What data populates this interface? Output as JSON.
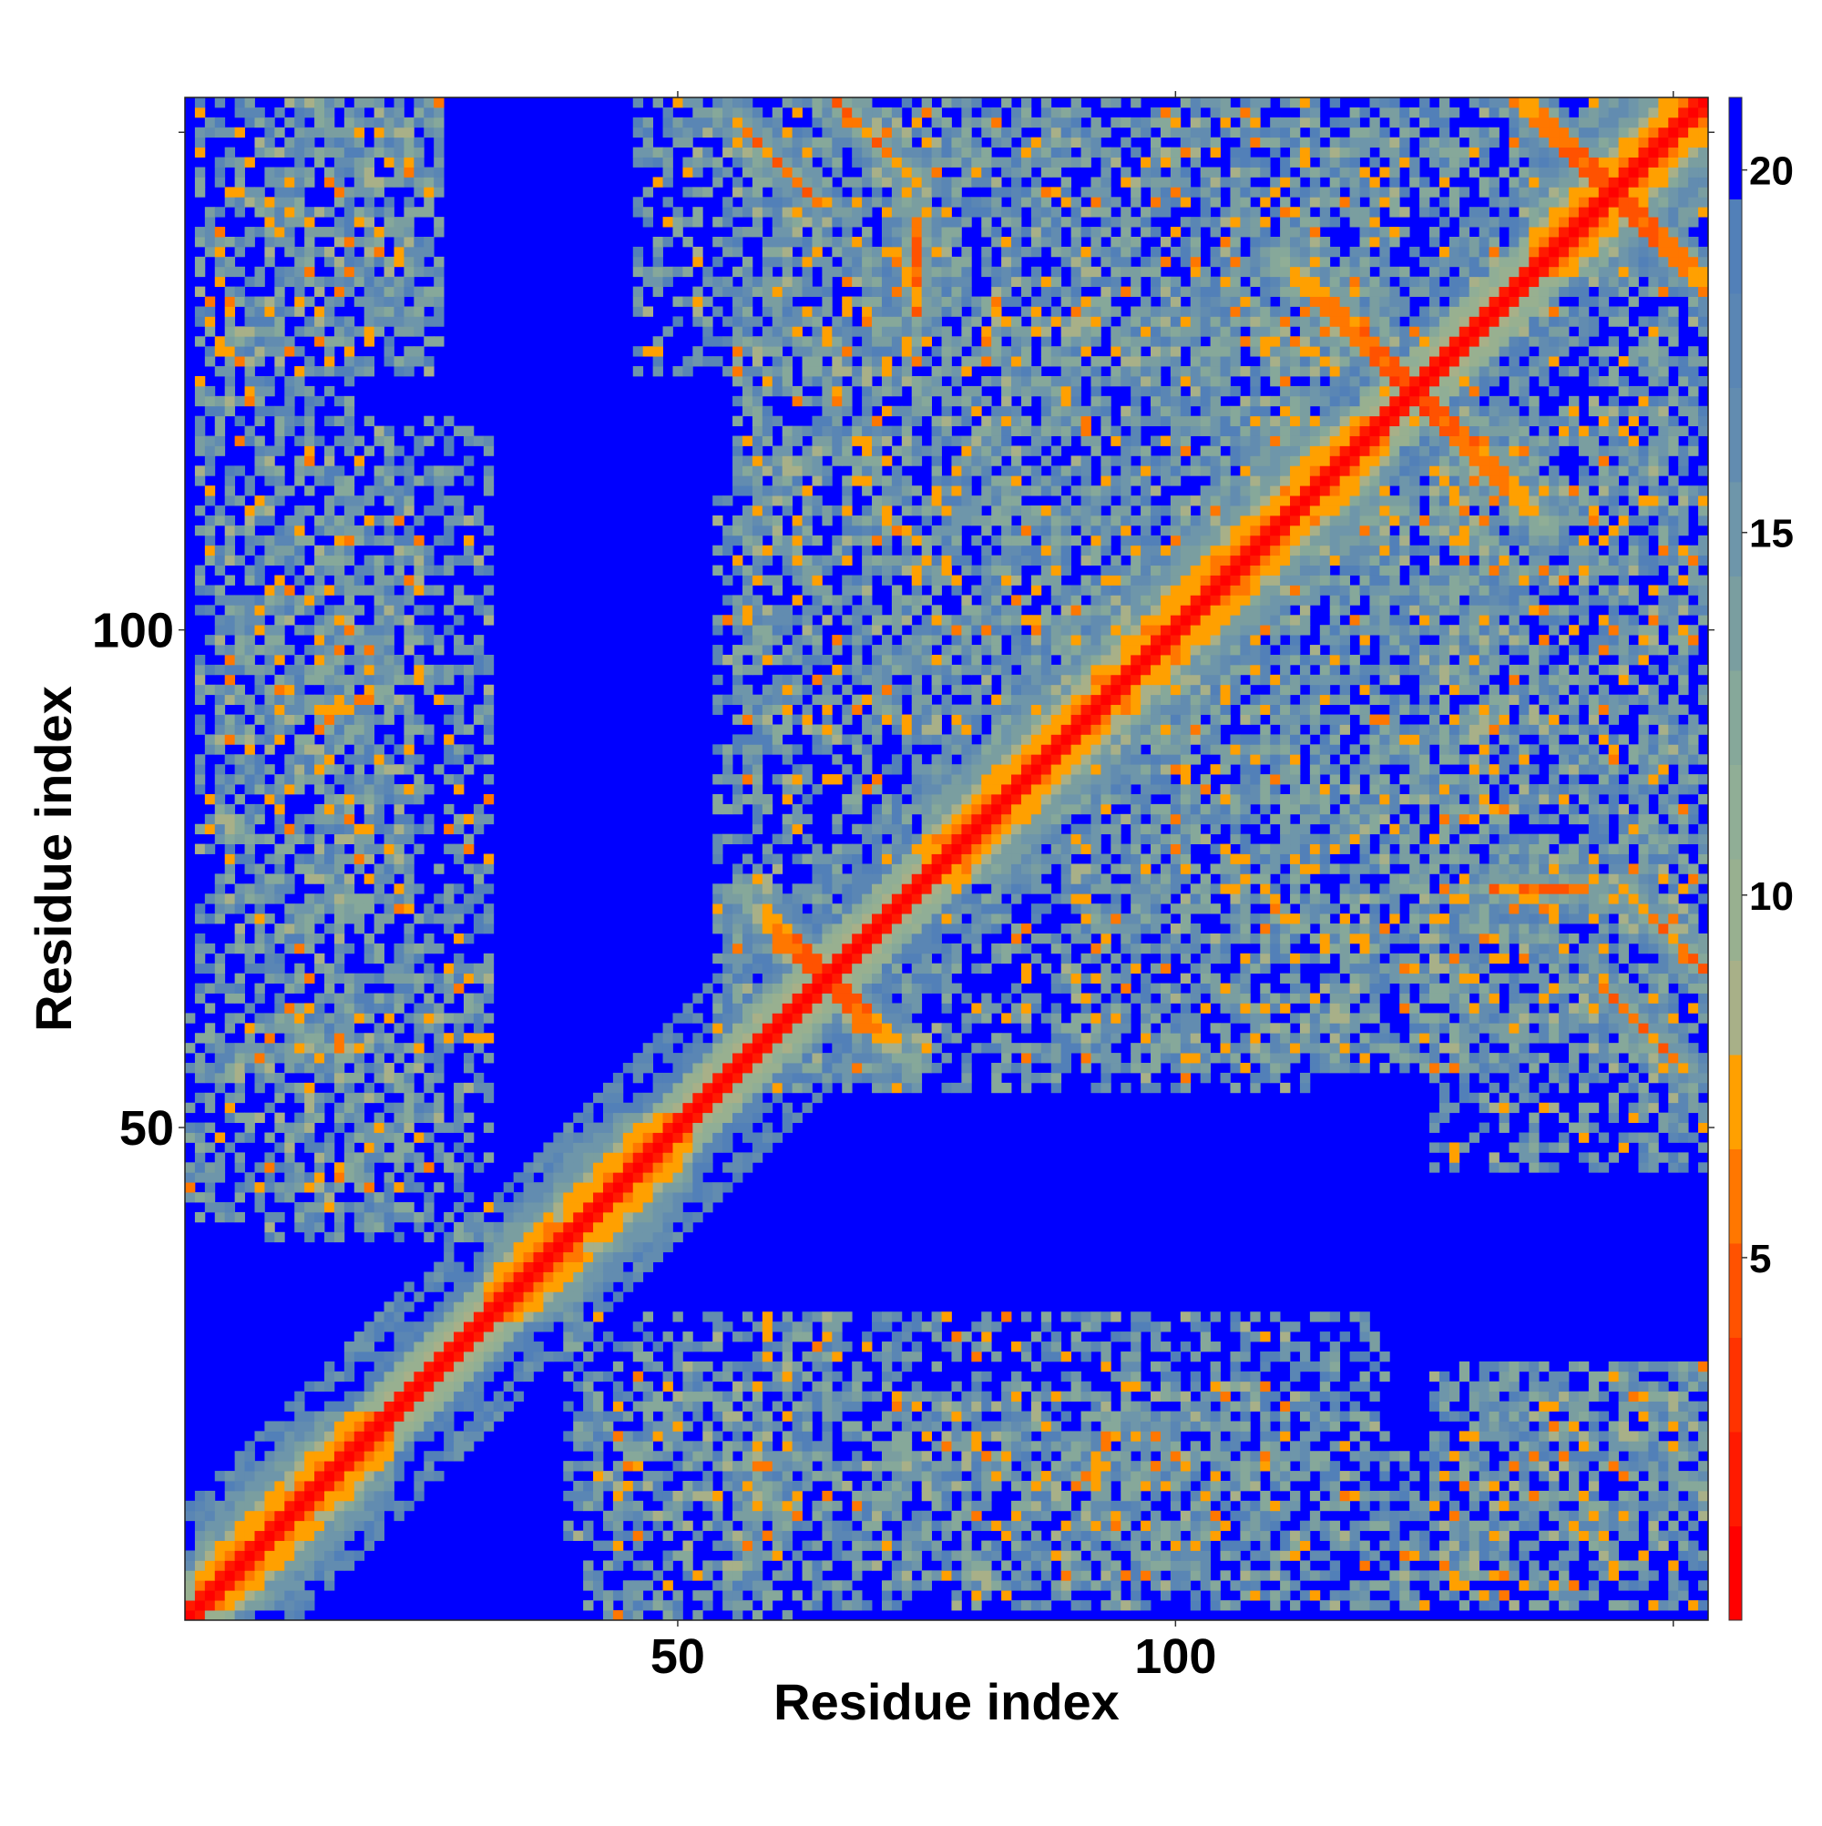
{
  "chart_data": {
    "type": "heatmap",
    "title": "",
    "xlabel": "Residue index",
    "ylabel": "Residue index",
    "n_residues": 153,
    "xlim": [
      1,
      153
    ],
    "ylim": [
      1,
      153
    ],
    "x_ticks": [
      {
        "value": 50,
        "label": "50"
      },
      {
        "value": 100,
        "label": "100"
      },
      {
        "value": 150,
        "label": ""
      }
    ],
    "y_ticks": [
      {
        "value": 50,
        "label": "50"
      },
      {
        "value": 100,
        "label": "100"
      },
      {
        "value": 150,
        "label": ""
      }
    ],
    "colorbar": {
      "range": [
        0,
        21
      ],
      "ticks": [
        {
          "value": 5,
          "label": "5"
        },
        {
          "value": 10,
          "label": "10"
        },
        {
          "value": 15,
          "label": "15"
        },
        {
          "value": 20,
          "label": "20"
        }
      ],
      "levels": [
        {
          "max": 1.3,
          "color": "#ff0000"
        },
        {
          "max": 2.6,
          "color": "#ff1a00"
        },
        {
          "max": 3.9,
          "color": "#ff3300"
        },
        {
          "max": 5.2,
          "color": "#ff5200"
        },
        {
          "max": 6.5,
          "color": "#ff7700"
        },
        {
          "max": 7.8,
          "color": "#ffa000"
        },
        {
          "max": 9.1,
          "color": "#a8b088"
        },
        {
          "max": 10.5,
          "color": "#98b090"
        },
        {
          "max": 11.8,
          "color": "#90ae96"
        },
        {
          "max": 13.1,
          "color": "#86a89a"
        },
        {
          "max": 14.4,
          "color": "#7a9ea0"
        },
        {
          "max": 15.7,
          "color": "#6e96aa"
        },
        {
          "max": 17.0,
          "color": "#628cb0"
        },
        {
          "max": 18.3,
          "color": "#5a86b4"
        },
        {
          "max": 19.6,
          "color": "#5280b8"
        },
        {
          "max": 21.0,
          "color": "#0000ff"
        }
      ]
    },
    "value_description": "Pairwise C-alpha distance map; values are approximate distances read from the colour scale. Diagonal ~0; saturated blue means >= 20.",
    "features": {
      "diagonal": true,
      "helix_segments": [
        [
          1,
          20
        ],
        [
          30,
          50
        ],
        [
          74,
          98
        ],
        [
          98,
          120
        ],
        [
          135,
          152
        ]
      ],
      "antidiagonal_contacts": [
        {
          "center": [
            64,
            64
          ],
          "half_length": 7
        },
        {
          "center": [
            123,
            123
          ],
          "half_length": 12
        },
        {
          "center": [
            143,
            143
          ],
          "half_length": 12
        }
      ],
      "offdiagonal_bands": [
        {
          "from": [
            55,
            150
          ],
          "to": [
            63,
            142
          ]
        },
        {
          "from": [
            144,
            73
          ],
          "to": [
            152,
            65
          ]
        },
        {
          "from": [
            73,
            140
          ],
          "to": [
            73,
            131
          ]
        }
      ],
      "noisy_contact_regions": [
        [
          1,
          25,
          125,
          153
        ],
        [
          1,
          16,
          55,
          130
        ],
        [
          0,
          25,
          40,
          60
        ],
        [
          3,
          22,
          70,
          110
        ],
        [
          38,
          65,
          8,
          30
        ],
        [
          60,
          120,
          15,
          30
        ],
        [
          129,
          153,
          8,
          25
        ],
        [
          55,
          112,
          53,
          150
        ],
        [
          88,
          130,
          55,
          120
        ],
        [
          125,
          153,
          45,
          120
        ],
        [
          112,
          150,
          128,
          153
        ]
      ]
    }
  }
}
